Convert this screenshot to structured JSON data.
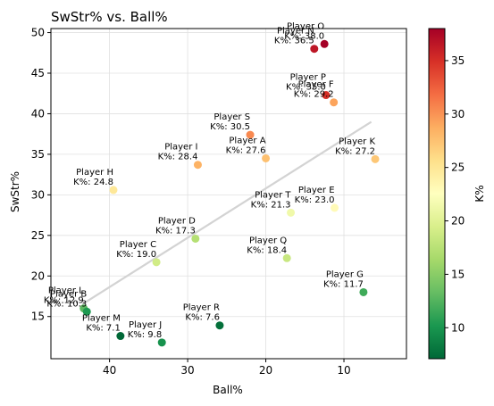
{
  "chart_data": {
    "type": "scatter",
    "title": "SwStr% vs. Ball%",
    "xlabel": "Ball%",
    "ylabel": "SwStr%",
    "x_inverted": true,
    "xlim": [
      47.5,
      2.0
    ],
    "ylim": [
      9.8,
      50.5
    ],
    "xticks": [
      40,
      30,
      20,
      10
    ],
    "yticks": [
      15,
      20,
      25,
      30,
      35,
      40,
      45,
      50
    ],
    "grid": true,
    "colorbar": {
      "label": "K%",
      "colormap": "RdYlGn_r",
      "range": [
        7.1,
        38.0
      ],
      "ticks": [
        10,
        15,
        20,
        25,
        30,
        35
      ]
    },
    "trendline": {
      "x": [
        43.5,
        6.5
      ],
      "y": [
        16.5,
        39.0
      ],
      "color": "#d3d3d3"
    },
    "points": [
      {
        "name": "Player O",
        "x": 12.5,
        "y": 48.6,
        "k": 38.0,
        "label": "Player O\nK%: 38.0"
      },
      {
        "name": "Player N",
        "x": 13.8,
        "y": 48.0,
        "k": 36.5,
        "label": "Player N\nK%: 36.5"
      },
      {
        "name": "Player P",
        "x": 12.3,
        "y": 42.3,
        "k": 35.0,
        "label": "Player P\nK%: 35.0"
      },
      {
        "name": "Player F",
        "x": 11.3,
        "y": 41.4,
        "k": 29.2,
        "label": "Player F\nK%: 29.2"
      },
      {
        "name": "Player S",
        "x": 22.0,
        "y": 37.4,
        "k": 30.5,
        "label": "Player S\nK%: 30.5"
      },
      {
        "name": "Player A",
        "x": 20.0,
        "y": 34.5,
        "k": 27.6,
        "label": "Player A\nK%: 27.6"
      },
      {
        "name": "Player I",
        "x": 28.7,
        "y": 33.7,
        "k": 28.4,
        "label": "Player I\nK%: 28.4"
      },
      {
        "name": "Player K",
        "x": 6.0,
        "y": 34.4,
        "k": 27.2,
        "label": "Player K\nK%: 27.2"
      },
      {
        "name": "Player H",
        "x": 39.5,
        "y": 30.6,
        "k": 24.8,
        "label": "Player H\nK%: 24.8"
      },
      {
        "name": "Player E",
        "x": 11.2,
        "y": 28.4,
        "k": 23.0,
        "label": "Player E\nK%: 23.0"
      },
      {
        "name": "Player T",
        "x": 16.8,
        "y": 27.8,
        "k": 21.3,
        "label": "Player T\nK%: 21.3"
      },
      {
        "name": "Player D",
        "x": 29.0,
        "y": 24.6,
        "k": 17.3,
        "label": "Player D\nK%: 17.3"
      },
      {
        "name": "Player C",
        "x": 34.0,
        "y": 21.7,
        "k": 19.0,
        "label": "Player C\nK%: 19.0"
      },
      {
        "name": "Player Q",
        "x": 17.3,
        "y": 22.2,
        "k": 18.4,
        "label": "Player Q\nK%: 18.4"
      },
      {
        "name": "Player G",
        "x": 7.5,
        "y": 18.0,
        "k": 11.7,
        "label": "Player G\nK%: 11.7"
      },
      {
        "name": "Player L",
        "x": 43.3,
        "y": 16.0,
        "k": 12.9,
        "label": "Player L\nK%: 12.9"
      },
      {
        "name": "Player B",
        "x": 42.9,
        "y": 15.6,
        "k": 10.3,
        "label": "Player B\nK%: 10.3"
      },
      {
        "name": "Player R",
        "x": 25.9,
        "y": 13.9,
        "k": 7.6,
        "label": "Player R\nK%: 7.6"
      },
      {
        "name": "Player M",
        "x": 38.6,
        "y": 12.6,
        "k": 7.1,
        "label": "Player M\nK%: 7.1"
      },
      {
        "name": "Player J",
        "x": 33.3,
        "y": 11.8,
        "k": 9.8,
        "label": "Player J\nK%: 9.8"
      }
    ]
  }
}
